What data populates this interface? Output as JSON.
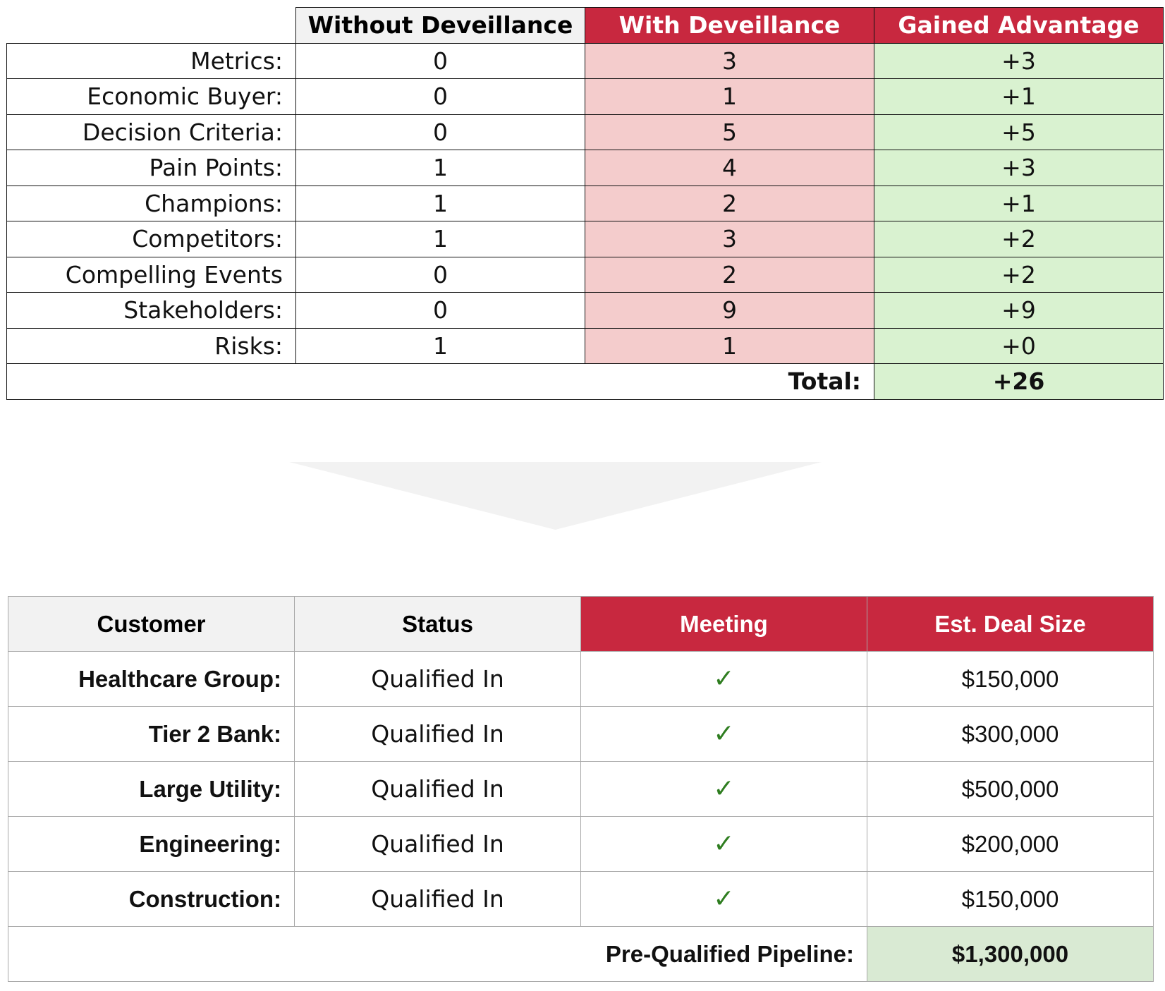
{
  "comparison": {
    "headers": {
      "without": "Without Deveillance",
      "with": "With Deveillance",
      "gain": "Gained Advantage"
    },
    "rows": [
      {
        "label": "Metrics:",
        "without": "0",
        "with": "3",
        "gain": "+3"
      },
      {
        "label": "Economic Buyer:",
        "without": "0",
        "with": "1",
        "gain": "+1"
      },
      {
        "label": "Decision Criteria:",
        "without": "0",
        "with": "5",
        "gain": "+5"
      },
      {
        "label": "Pain Points:",
        "without": "1",
        "with": "4",
        "gain": "+3"
      },
      {
        "label": "Champions:",
        "without": "1",
        "with": "2",
        "gain": "+1"
      },
      {
        "label": "Competitors:",
        "without": "1",
        "with": "3",
        "gain": "+2"
      },
      {
        "label": "Compelling Events",
        "without": "0",
        "with": "2",
        "gain": "+2"
      },
      {
        "label": "Stakeholders:",
        "without": "0",
        "with": "9",
        "gain": "+9"
      },
      {
        "label": "Risks:",
        "without": "1",
        "with": "1",
        "gain": "+0"
      }
    ],
    "total_label": "Total:",
    "total_value": "+26"
  },
  "arrow": {
    "icon": "down-chevron-arrow-icon",
    "color": "#f2f2f2"
  },
  "pipeline": {
    "headers": {
      "customer": "Customer",
      "status": "Status",
      "meeting": "Meeting",
      "deal_size": "Est. Deal Size"
    },
    "rows": [
      {
        "customer": "Healthcare Group:",
        "status": "Qualified In",
        "meeting": "✓",
        "deal_size": "$150,000"
      },
      {
        "customer": "Tier 2 Bank:",
        "status": "Qualified In",
        "meeting": "✓",
        "deal_size": "$300,000"
      },
      {
        "customer": "Large Utility:",
        "status": "Qualified In",
        "meeting": "✓",
        "deal_size": "$500,000"
      },
      {
        "customer": "Engineering:",
        "status": "Qualified In",
        "meeting": "✓",
        "deal_size": "$200,000"
      },
      {
        "customer": "Construction:",
        "status": "Qualified In",
        "meeting": "✓",
        "deal_size": "$150,000"
      }
    ],
    "total_label": "Pre-Qualified Pipeline:",
    "total_value": "$1,300,000"
  },
  "colors": {
    "header_red": "#c8283f",
    "header_gray": "#f2f2f2",
    "with_cell_pink": "#f4cccc",
    "gain_cell_green": "#d9f2d0",
    "pipeline_total_green": "#d9ead3",
    "checkmark_green": "#2e7d1f"
  }
}
